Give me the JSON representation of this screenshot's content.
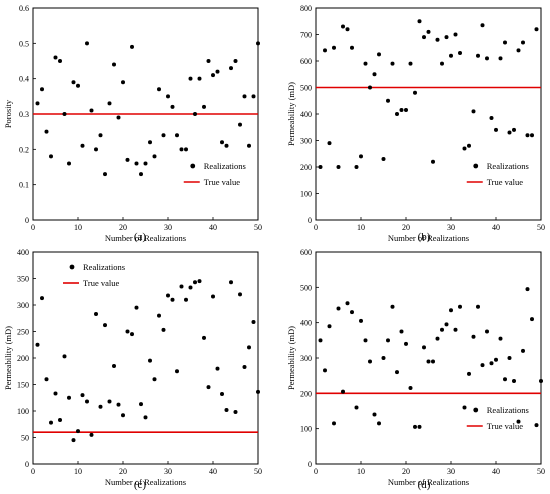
{
  "style": {
    "point_color": "#000000",
    "true_line_color": "#e00000"
  },
  "chart_data": [
    {
      "type": "scatter",
      "caption": "(a)",
      "xlabel": "Number of Realizations",
      "ylabel": "Porosity",
      "xlim": [
        0,
        50
      ],
      "ylim": [
        0,
        0.6
      ],
      "xticks": [
        0,
        10,
        20,
        30,
        40,
        50
      ],
      "yticks": [
        0,
        0.1,
        0.2,
        0.3,
        0.4,
        0.5,
        0.6
      ],
      "ytick_labels": [
        "0",
        "0.1",
        "0.2",
        "0.3",
        "0.4",
        "0.5",
        "0.6"
      ],
      "legend": {
        "position": "bottom-right",
        "entries": [
          "Realizations",
          "True value"
        ]
      },
      "true_value": 0.3,
      "x": [
        1,
        2,
        3,
        4,
        5,
        6,
        7,
        8,
        9,
        10,
        11,
        12,
        13,
        14,
        15,
        16,
        17,
        18,
        19,
        20,
        21,
        22,
        23,
        24,
        25,
        26,
        27,
        28,
        29,
        30,
        31,
        32,
        33,
        34,
        35,
        36,
        37,
        38,
        39,
        40,
        41,
        42,
        43,
        44,
        45,
        46,
        47,
        48,
        49,
        50
      ],
      "y": [
        0.33,
        0.37,
        0.25,
        0.18,
        0.46,
        0.45,
        0.3,
        0.16,
        0.39,
        0.38,
        0.21,
        0.5,
        0.31,
        0.2,
        0.24,
        0.13,
        0.33,
        0.44,
        0.29,
        0.39,
        0.17,
        0.49,
        0.16,
        0.13,
        0.16,
        0.22,
        0.18,
        0.37,
        0.24,
        0.35,
        0.32,
        0.24,
        0.2,
        0.2,
        0.4,
        0.3,
        0.4,
        0.32,
        0.45,
        0.41,
        0.42,
        0.22,
        0.21,
        0.43,
        0.45,
        0.27,
        0.35,
        0.21,
        0.35,
        0.5
      ]
    },
    {
      "type": "scatter",
      "caption": "(b)",
      "xlabel": "Number of Realizations",
      "ylabel": "Permeability (mD)",
      "xlim": [
        0,
        50
      ],
      "ylim": [
        0,
        800
      ],
      "xticks": [
        0,
        10,
        20,
        30,
        40,
        50
      ],
      "yticks": [
        0,
        100,
        200,
        300,
        400,
        500,
        600,
        700,
        800
      ],
      "ytick_labels": [
        "0",
        "100",
        "200",
        "300",
        "400",
        "500",
        "600",
        "700",
        "800"
      ],
      "legend": {
        "position": "bottom-right",
        "entries": [
          "Realizations",
          "True value"
        ]
      },
      "true_value": 500,
      "x": [
        1,
        2,
        3,
        4,
        5,
        6,
        7,
        8,
        9,
        10,
        11,
        12,
        13,
        14,
        15,
        16,
        17,
        18,
        19,
        20,
        21,
        22,
        23,
        24,
        25,
        26,
        27,
        28,
        29,
        30,
        31,
        32,
        33,
        34,
        35,
        36,
        37,
        38,
        39,
        40,
        41,
        42,
        43,
        44,
        45,
        46,
        47,
        48,
        49
      ],
      "y": [
        200,
        640,
        290,
        650,
        200,
        730,
        720,
        650,
        200,
        240,
        590,
        500,
        550,
        625,
        230,
        450,
        590,
        400,
        415,
        415,
        590,
        480,
        750,
        690,
        710,
        220,
        680,
        590,
        690,
        620,
        700,
        630,
        270,
        280,
        410,
        620,
        735,
        610,
        385,
        340,
        610,
        670,
        330,
        340,
        640,
        670,
        320,
        320,
        720
      ]
    },
    {
      "type": "scatter",
      "caption": "(c)",
      "xlabel": "Number of Realizations",
      "ylabel": "Permeability (mD)",
      "xlim": [
        0,
        50
      ],
      "ylim": [
        0,
        400
      ],
      "xticks": [
        0,
        10,
        20,
        30,
        40,
        50
      ],
      "yticks": [
        0,
        50,
        100,
        150,
        200,
        250,
        300,
        350,
        400
      ],
      "ytick_labels": [
        "0",
        "50",
        "100",
        "150",
        "200",
        "250",
        "300",
        "350",
        "400"
      ],
      "legend": {
        "position": "top-left",
        "entries": [
          "Realizations",
          "True value"
        ]
      },
      "true_value": 60,
      "x": [
        1,
        2,
        3,
        4,
        5,
        6,
        7,
        8,
        9,
        10,
        11,
        12,
        13,
        14,
        15,
        16,
        17,
        18,
        19,
        20,
        21,
        22,
        23,
        24,
        25,
        26,
        27,
        28,
        29,
        30,
        31,
        32,
        33,
        34,
        35,
        36,
        37,
        38,
        39,
        40,
        41,
        42,
        43,
        44,
        45,
        46,
        47,
        48,
        49,
        50
      ],
      "y": [
        225,
        313,
        160,
        78,
        133,
        83,
        203,
        125,
        45,
        62,
        130,
        118,
        55,
        283,
        108,
        262,
        118,
        185,
        112,
        92,
        250,
        245,
        295,
        113,
        88,
        195,
        160,
        280,
        253,
        318,
        310,
        175,
        335,
        310,
        333,
        343,
        345,
        238,
        145,
        316,
        180,
        132,
        102,
        343,
        98,
        320,
        183,
        220,
        268,
        136
      ]
    },
    {
      "type": "scatter",
      "caption": "(d)",
      "xlabel": "Number of Realizations",
      "ylabel": "Permeability (mD)",
      "xlim": [
        0,
        50
      ],
      "ylim": [
        0,
        600
      ],
      "xticks": [
        0,
        10,
        20,
        30,
        40,
        50
      ],
      "yticks": [
        0,
        100,
        200,
        300,
        400,
        500,
        600
      ],
      "ytick_labels": [
        "0",
        "100",
        "200",
        "300",
        "400",
        "500",
        "600"
      ],
      "legend": {
        "position": "bottom-right",
        "entries": [
          "Realizations",
          "True value"
        ]
      },
      "true_value": 200,
      "x": [
        1,
        2,
        3,
        4,
        5,
        6,
        7,
        8,
        9,
        10,
        11,
        12,
        13,
        14,
        15,
        16,
        17,
        18,
        19,
        20,
        21,
        22,
        23,
        24,
        25,
        26,
        27,
        28,
        29,
        30,
        31,
        32,
        33,
        34,
        35,
        36,
        37,
        38,
        39,
        40,
        41,
        42,
        43,
        44,
        45,
        46,
        47,
        48,
        49,
        50
      ],
      "y": [
        350,
        265,
        390,
        115,
        440,
        205,
        455,
        430,
        160,
        405,
        350,
        290,
        140,
        115,
        300,
        350,
        445,
        260,
        375,
        340,
        215,
        105,
        105,
        330,
        290,
        290,
        355,
        380,
        395,
        435,
        380,
        445,
        160,
        255,
        360,
        445,
        280,
        375,
        285,
        295,
        355,
        240,
        300,
        235,
        120,
        320,
        495,
        410,
        110,
        235
      ]
    }
  ]
}
